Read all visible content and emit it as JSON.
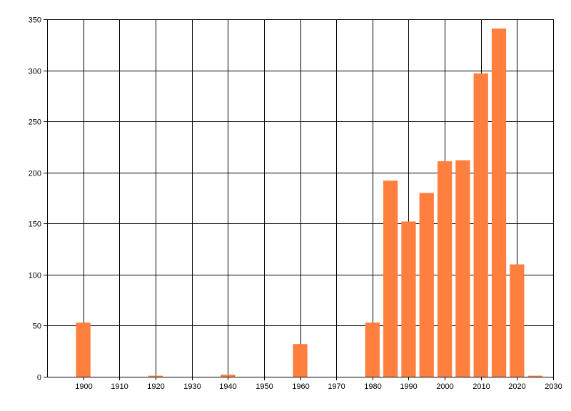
{
  "chart_data": {
    "type": "bar",
    "x": [
      1900,
      1920,
      1940,
      1960,
      1980,
      1985,
      1990,
      1995,
      2000,
      2005,
      2010,
      2015,
      2020,
      2025
    ],
    "values": [
      53,
      1,
      2,
      32,
      53,
      192,
      152,
      180,
      211,
      212,
      297,
      341,
      110,
      1
    ],
    "x_ticks": [
      1900,
      1910,
      1920,
      1930,
      1940,
      1950,
      1960,
      1970,
      1980,
      1990,
      2000,
      2010,
      2020,
      2030
    ],
    "y_ticks": [
      0,
      50,
      100,
      150,
      200,
      250,
      300,
      350
    ],
    "xlim": [
      1890,
      2030
    ],
    "ylim": [
      0,
      350
    ],
    "title": "",
    "xlabel": "",
    "ylabel": "",
    "grid": true,
    "legend": "none",
    "bar_color": "#ff7f3f",
    "grid_color": "#000000"
  }
}
